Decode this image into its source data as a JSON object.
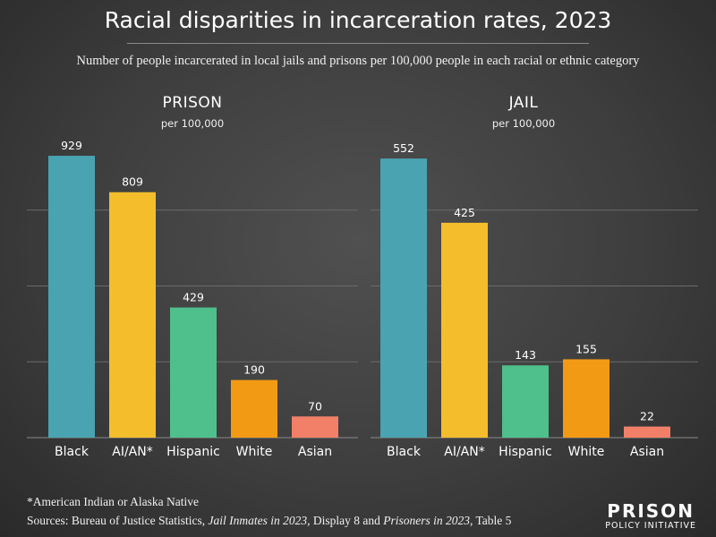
{
  "header": {
    "title": "Racial disparities in incarceration rates, 2023",
    "subtitle": "Number of people incarcerated in local jails and prisons per 100,000 people in each racial or ethnic category"
  },
  "chart_data": [
    {
      "type": "bar",
      "title": "PRISON",
      "subtitle": "per 100,000",
      "categories": [
        "Black",
        "AI/AN*",
        "Hispanic",
        "White",
        "Asian"
      ],
      "values": [
        929,
        809,
        429,
        190,
        70
      ],
      "ylim": [
        0,
        1000
      ],
      "grid": true,
      "colors": [
        "#4aa3b0",
        "#f3bd2c",
        "#4fbf8c",
        "#f39a14",
        "#f28068"
      ]
    },
    {
      "type": "bar",
      "title": "JAIL",
      "subtitle": "per 100,000",
      "categories": [
        "Black",
        "AI/AN*",
        "Hispanic",
        "White",
        "Asian"
      ],
      "values": [
        552,
        425,
        143,
        155,
        22
      ],
      "ylim": [
        0,
        600
      ],
      "grid": true,
      "colors": [
        "#4aa3b0",
        "#f3bd2c",
        "#4fbf8c",
        "#f39a14",
        "#f28068"
      ]
    }
  ],
  "footer": {
    "footnote": "*American Indian or Alaska Native",
    "sources_prefix": "Sources: Bureau of Justice Statistics, ",
    "source1": "Jail Inmates in 2023",
    "sources_mid": ", Display 8 and ",
    "source2": "Prisoners in 2023",
    "sources_suffix": ", Table 5"
  },
  "logo": {
    "line1": "PRISON",
    "line2": "POLICY INITIATIVE"
  }
}
